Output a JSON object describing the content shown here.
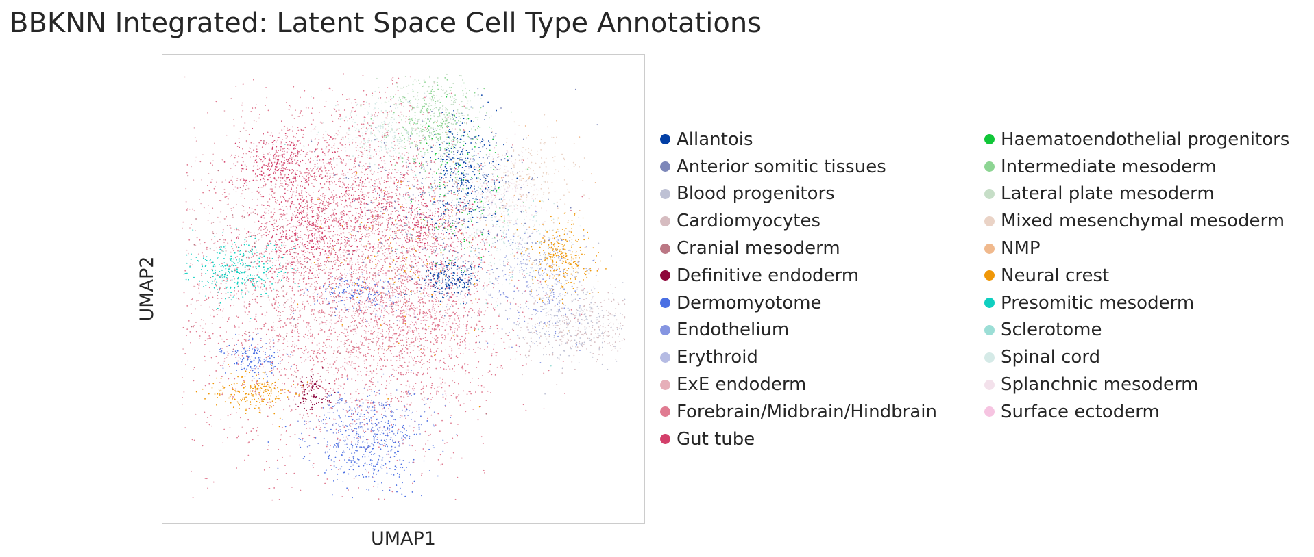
{
  "title": "BBKNN Integrated: Latent Space Cell Type Annotations",
  "chart_data": {
    "type": "scatter",
    "title": "BBKNN Integrated: Latent Space Cell Type Annotations",
    "xlabel": "UMAP1",
    "ylabel": "UMAP2",
    "ticks_shown": false,
    "grid": false,
    "legend_placement": "right, two columns",
    "categories": [
      {
        "name": "Allantois",
        "color": "#023fa5"
      },
      {
        "name": "Anterior somitic tissues",
        "color": "#7d87b9"
      },
      {
        "name": "Blood progenitors",
        "color": "#bec1d4"
      },
      {
        "name": "Cardiomyocytes",
        "color": "#d6bcc0"
      },
      {
        "name": "Cranial mesoderm",
        "color": "#bb7784"
      },
      {
        "name": "Definitive endoderm",
        "color": "#8e063b"
      },
      {
        "name": "Dermomyotome",
        "color": "#4a6fe3"
      },
      {
        "name": "Endothelium",
        "color": "#8595e1"
      },
      {
        "name": "Erythroid",
        "color": "#b5bbe3"
      },
      {
        "name": "ExE endoderm",
        "color": "#e6afb9"
      },
      {
        "name": "Forebrain/Midbrain/Hindbrain",
        "color": "#e07b91"
      },
      {
        "name": "Gut tube",
        "color": "#d33f6a"
      },
      {
        "name": "Haematoendothelial progenitors",
        "color": "#11c638"
      },
      {
        "name": "Intermediate mesoderm",
        "color": "#8dd593"
      },
      {
        "name": "Lateral plate mesoderm",
        "color": "#c6dec7"
      },
      {
        "name": "Mixed mesenchymal mesoderm",
        "color": "#ead3c6"
      },
      {
        "name": "NMP",
        "color": "#f0b98d"
      },
      {
        "name": "Neural crest",
        "color": "#ef9708"
      },
      {
        "name": "Presomitic mesoderm",
        "color": "#0fcfc0"
      },
      {
        "name": "Sclerotome",
        "color": "#9cded6"
      },
      {
        "name": "Spinal cord",
        "color": "#d5eae7"
      },
      {
        "name": "Splanchnic mesoderm",
        "color": "#f3e1eb"
      },
      {
        "name": "Surface ectoderm",
        "color": "#f6c4e1"
      }
    ],
    "clusters": [
      {
        "category": "Forebrain/Midbrain/Hindbrain",
        "x": 0.36,
        "y": 0.47,
        "sx": 0.17,
        "sy": 0.17,
        "n": 2600
      },
      {
        "category": "Forebrain/Midbrain/Hindbrain",
        "x": 0.52,
        "y": 0.45,
        "sx": 0.09,
        "sy": 0.1,
        "n": 1200
      },
      {
        "category": "Forebrain/Midbrain/Hindbrain",
        "x": 0.39,
        "y": 0.74,
        "sx": 0.11,
        "sy": 0.1,
        "n": 900
      },
      {
        "category": "Gut tube",
        "x": 0.3,
        "y": 0.62,
        "sx": 0.05,
        "sy": 0.05,
        "n": 400
      },
      {
        "category": "Gut tube",
        "x": 0.24,
        "y": 0.77,
        "sx": 0.04,
        "sy": 0.03,
        "n": 280
      },
      {
        "category": "Gut tube",
        "x": 0.55,
        "y": 0.62,
        "sx": 0.05,
        "sy": 0.04,
        "n": 260
      },
      {
        "category": "Gut tube",
        "x": 0.42,
        "y": 0.68,
        "sx": 0.08,
        "sy": 0.05,
        "n": 250
      },
      {
        "category": "ExE endoderm",
        "x": 0.26,
        "y": 0.62,
        "sx": 0.13,
        "sy": 0.15,
        "n": 550
      },
      {
        "category": "Cranial mesoderm",
        "x": 0.32,
        "y": 0.52,
        "sx": 0.13,
        "sy": 0.1,
        "n": 200
      },
      {
        "category": "Cardiomyocytes",
        "x": 0.88,
        "y": 0.42,
        "sx": 0.07,
        "sy": 0.04,
        "n": 320
      },
      {
        "category": "Blood progenitors",
        "x": 0.85,
        "y": 0.44,
        "sx": 0.06,
        "sy": 0.05,
        "n": 250
      },
      {
        "category": "Allantois",
        "x": 0.63,
        "y": 0.75,
        "sx": 0.04,
        "sy": 0.06,
        "n": 330
      },
      {
        "category": "Allantois",
        "x": 0.6,
        "y": 0.52,
        "sx": 0.03,
        "sy": 0.02,
        "n": 200
      },
      {
        "category": "Anterior somitic tissues",
        "x": 0.58,
        "y": 0.68,
        "sx": 0.1,
        "sy": 0.1,
        "n": 400
      },
      {
        "category": "Intermediate mesoderm",
        "x": 0.57,
        "y": 0.84,
        "sx": 0.05,
        "sy": 0.05,
        "n": 300
      },
      {
        "category": "Lateral plate mesoderm",
        "x": 0.56,
        "y": 0.88,
        "sx": 0.05,
        "sy": 0.04,
        "n": 250
      },
      {
        "category": "Haematoendothelial progenitors",
        "x": 0.62,
        "y": 0.72,
        "sx": 0.05,
        "sy": 0.08,
        "n": 120
      },
      {
        "category": "Splanchnic mesoderm",
        "x": 0.7,
        "y": 0.7,
        "sx": 0.04,
        "sy": 0.04,
        "n": 250
      },
      {
        "category": "Mixed mesenchymal mesoderm",
        "x": 0.76,
        "y": 0.74,
        "sx": 0.05,
        "sy": 0.05,
        "n": 200
      },
      {
        "category": "Spinal cord",
        "x": 0.45,
        "y": 0.83,
        "sx": 0.05,
        "sy": 0.04,
        "n": 230
      },
      {
        "category": "Spinal cord",
        "x": 0.72,
        "y": 0.6,
        "sx": 0.05,
        "sy": 0.05,
        "n": 150
      },
      {
        "category": "Neural crest",
        "x": 0.83,
        "y": 0.57,
        "sx": 0.03,
        "sy": 0.04,
        "n": 280
      },
      {
        "category": "Neural crest",
        "x": 0.19,
        "y": 0.28,
        "sx": 0.04,
        "sy": 0.02,
        "n": 200
      },
      {
        "category": "Neural crest",
        "x": 0.5,
        "y": 0.55,
        "sx": 0.1,
        "sy": 0.1,
        "n": 120
      },
      {
        "category": "Presomitic mesoderm",
        "x": 0.16,
        "y": 0.54,
        "sx": 0.05,
        "sy": 0.03,
        "n": 300
      },
      {
        "category": "Dermomyotome",
        "x": 0.43,
        "y": 0.17,
        "sx": 0.06,
        "sy": 0.05,
        "n": 400
      },
      {
        "category": "Dermomyotome",
        "x": 0.19,
        "y": 0.35,
        "sx": 0.03,
        "sy": 0.02,
        "n": 150
      },
      {
        "category": "Dermomyotome",
        "x": 0.4,
        "y": 0.49,
        "sx": 0.05,
        "sy": 0.02,
        "n": 150
      },
      {
        "category": "Endothelium",
        "x": 0.42,
        "y": 0.22,
        "sx": 0.06,
        "sy": 0.04,
        "n": 200
      },
      {
        "category": "Endothelium",
        "x": 0.78,
        "y": 0.5,
        "sx": 0.05,
        "sy": 0.06,
        "n": 150
      },
      {
        "category": "Erythroid",
        "x": 0.79,
        "y": 0.55,
        "sx": 0.05,
        "sy": 0.05,
        "n": 180
      },
      {
        "category": "Definitive endoderm",
        "x": 0.31,
        "y": 0.28,
        "sx": 0.02,
        "sy": 0.02,
        "n": 100
      },
      {
        "category": "Surface ectoderm",
        "x": 0.52,
        "y": 0.48,
        "sx": 0.08,
        "sy": 0.08,
        "n": 150
      },
      {
        "category": "Sclerotome",
        "x": 0.6,
        "y": 0.6,
        "sx": 0.1,
        "sy": 0.1,
        "n": 100
      },
      {
        "category": "NMP",
        "x": 0.65,
        "y": 0.66,
        "sx": 0.1,
        "sy": 0.1,
        "n": 100
      }
    ]
  }
}
